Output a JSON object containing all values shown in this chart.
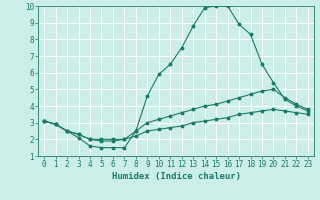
{
  "title": "",
  "xlabel": "Humidex (Indice chaleur)",
  "bg_color": "#cceee8",
  "line_color": "#1a7a6a",
  "grid_color": "#ffffff",
  "xlim": [
    -0.5,
    23.5
  ],
  "ylim": [
    1,
    10
  ],
  "xticks": [
    0,
    1,
    2,
    3,
    4,
    5,
    6,
    7,
    8,
    9,
    10,
    11,
    12,
    13,
    14,
    15,
    16,
    17,
    18,
    19,
    20,
    21,
    22,
    23
  ],
  "yticks": [
    1,
    2,
    3,
    4,
    5,
    6,
    7,
    8,
    9,
    10
  ],
  "curve1_x": [
    0,
    1,
    2,
    3,
    4,
    5,
    6,
    7,
    8,
    9,
    10,
    11,
    12,
    13,
    14,
    15,
    16,
    17,
    18,
    19,
    20,
    21,
    22,
    23
  ],
  "curve1_y": [
    3.1,
    2.9,
    2.5,
    2.1,
    1.6,
    1.5,
    1.5,
    1.5,
    2.5,
    4.6,
    5.9,
    6.5,
    7.5,
    8.8,
    9.9,
    10.0,
    10.0,
    8.9,
    8.3,
    6.5,
    5.4,
    4.4,
    4.0,
    3.7
  ],
  "curve2_x": [
    0,
    1,
    2,
    3,
    4,
    5,
    6,
    7,
    8,
    9,
    10,
    11,
    12,
    13,
    14,
    15,
    16,
    17,
    18,
    19,
    20,
    21,
    22,
    23
  ],
  "curve2_y": [
    3.1,
    2.9,
    2.5,
    2.3,
    2.0,
    1.9,
    1.9,
    2.0,
    2.5,
    3.0,
    3.2,
    3.4,
    3.6,
    3.8,
    4.0,
    4.1,
    4.3,
    4.5,
    4.7,
    4.9,
    5.0,
    4.5,
    4.1,
    3.8
  ],
  "curve3_x": [
    0,
    1,
    2,
    3,
    4,
    5,
    6,
    7,
    8,
    9,
    10,
    11,
    12,
    13,
    14,
    15,
    16,
    17,
    18,
    19,
    20,
    21,
    22,
    23
  ],
  "curve3_y": [
    3.1,
    2.9,
    2.5,
    2.3,
    2.0,
    2.0,
    2.0,
    2.0,
    2.2,
    2.5,
    2.6,
    2.7,
    2.8,
    3.0,
    3.1,
    3.2,
    3.3,
    3.5,
    3.6,
    3.7,
    3.8,
    3.7,
    3.6,
    3.5
  ],
  "marker": "o",
  "markersize": 1.8,
  "linewidth": 0.8,
  "tick_fontsize": 5.5,
  "xlabel_fontsize": 6.5
}
